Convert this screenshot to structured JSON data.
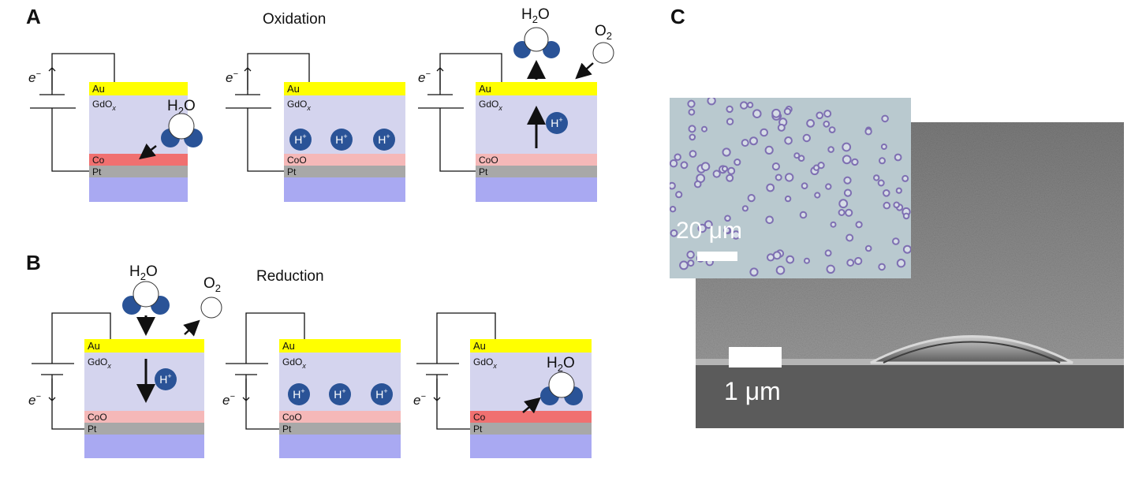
{
  "panels": {
    "A": {
      "letter": "A",
      "title": "Oxidation",
      "cells": [
        {
          "top_label": "Au",
          "oxide_label": "GdO",
          "oxide_sub": "x",
          "metal_label": "Co",
          "base_label": "Pt",
          "electron": "e",
          "electron_sup": "−",
          "molecule": "H",
          "molecule_sub": "2",
          "molecule_tail": "O"
        },
        {
          "top_label": "Au",
          "oxide_label": "GdO",
          "oxide_sub": "x",
          "metal_label": "CoO",
          "base_label": "Pt",
          "electron": "e",
          "electron_sup": "−",
          "proton": "H",
          "proton_sup": "+"
        },
        {
          "top_label": "Au",
          "oxide_label": "GdO",
          "oxide_sub": "x",
          "metal_label": "CoO",
          "base_label": "Pt",
          "electron": "e",
          "electron_sup": "−",
          "proton": "H",
          "proton_sup": "+",
          "molecule": "H",
          "molecule_sub": "2",
          "molecule_tail": "O",
          "gas": "O",
          "gas_sub": "2"
        }
      ]
    },
    "B": {
      "letter": "B",
      "title": "Reduction",
      "cells": [
        {
          "top_label": "Au",
          "oxide_label": "GdO",
          "oxide_sub": "x",
          "metal_label": "CoO",
          "base_label": "Pt",
          "electron": "e",
          "electron_sup": "−",
          "proton": "H",
          "proton_sup": "+",
          "molecule": "H",
          "molecule_sub": "2",
          "molecule_tail": "O",
          "gas": "O",
          "gas_sub": "2"
        },
        {
          "top_label": "Au",
          "oxide_label": "GdO",
          "oxide_sub": "x",
          "metal_label": "CoO",
          "base_label": "Pt",
          "electron": "e",
          "electron_sup": "−",
          "proton": "H",
          "proton_sup": "+"
        },
        {
          "top_label": "Au",
          "oxide_label": "GdO",
          "oxide_sub": "x",
          "metal_label": "Co",
          "base_label": "Pt",
          "electron": "e",
          "electron_sup": "−",
          "molecule": "H",
          "molecule_sub": "2",
          "molecule_tail": "O"
        }
      ]
    },
    "C": {
      "letter": "C",
      "inset_scale": "20 μm",
      "main_scale": "1 μm"
    }
  },
  "colors": {
    "au": "#ffff00",
    "oxide": "#d4d4ee",
    "co": "#f07070",
    "coo": "#f5b8b8",
    "pt": "#a8a8a8",
    "substrate": "#a9a9f2",
    "ion": "#2a5397",
    "molecule_h": "#2a5397",
    "sem_top": "#8a8a8a",
    "sem_bottom": "#5a5a5a",
    "photo_bg": "#b9c9cf",
    "photo_dot": "#7e6fb2"
  }
}
